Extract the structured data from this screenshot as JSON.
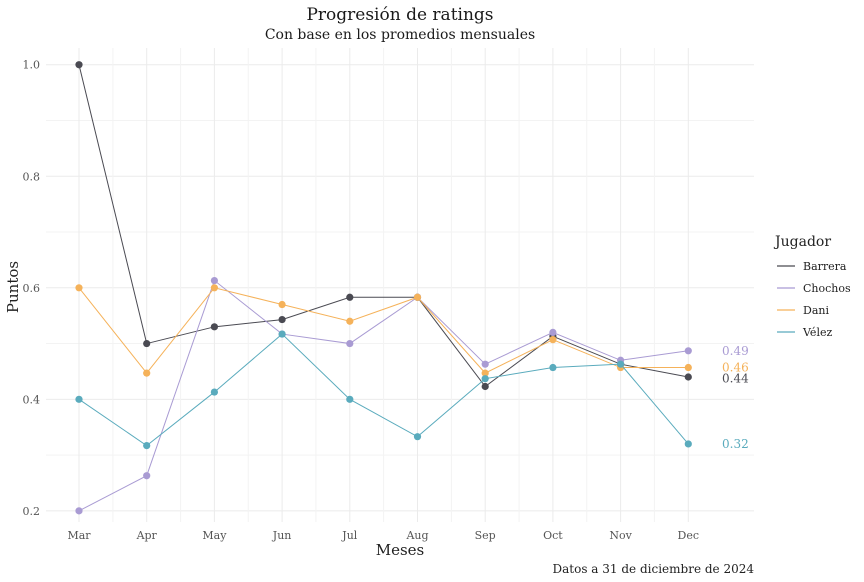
{
  "chart_data": {
    "type": "line",
    "title": "Progresión de ratings",
    "subtitle": "Con base en los promedios mensuales",
    "xlabel": "Meses",
    "ylabel": "Puntos",
    "caption": "Datos a 31 de diciembre de 2024",
    "categories": [
      "Mar",
      "Apr",
      "May",
      "Jun",
      "Jul",
      "Aug",
      "Sep",
      "Oct",
      "Nov",
      "Dec"
    ],
    "ylim": [
      0.18,
      1.03
    ],
    "yticks": [
      "0.2",
      "0.4",
      "0.6",
      "0.8",
      "1.0"
    ],
    "grid": true,
    "legend": {
      "title": "Jugador",
      "position": "right"
    },
    "series": [
      {
        "name": "Barrera",
        "color": "#4a4a52",
        "values": [
          1.0,
          0.5,
          0.53,
          0.543,
          0.583,
          0.583,
          0.423,
          0.513,
          0.463,
          0.44
        ],
        "end_label": "0.44"
      },
      {
        "name": "Chochos",
        "color": "#a99bd3",
        "values": [
          0.2,
          0.263,
          0.613,
          0.517,
          0.5,
          0.583,
          0.463,
          0.52,
          0.47,
          0.487
        ],
        "end_label": "0.49"
      },
      {
        "name": "Dani",
        "color": "#f5b25a",
        "values": [
          0.6,
          0.447,
          0.6,
          0.57,
          0.54,
          0.583,
          0.447,
          0.507,
          0.457,
          0.457
        ],
        "end_label": "0.46"
      },
      {
        "name": "Vélez",
        "color": "#5aabbd",
        "values": [
          0.4,
          0.317,
          0.413,
          0.517,
          0.4,
          0.333,
          0.437,
          0.457,
          0.463,
          0.32
        ],
        "end_label": "0.32"
      }
    ]
  }
}
